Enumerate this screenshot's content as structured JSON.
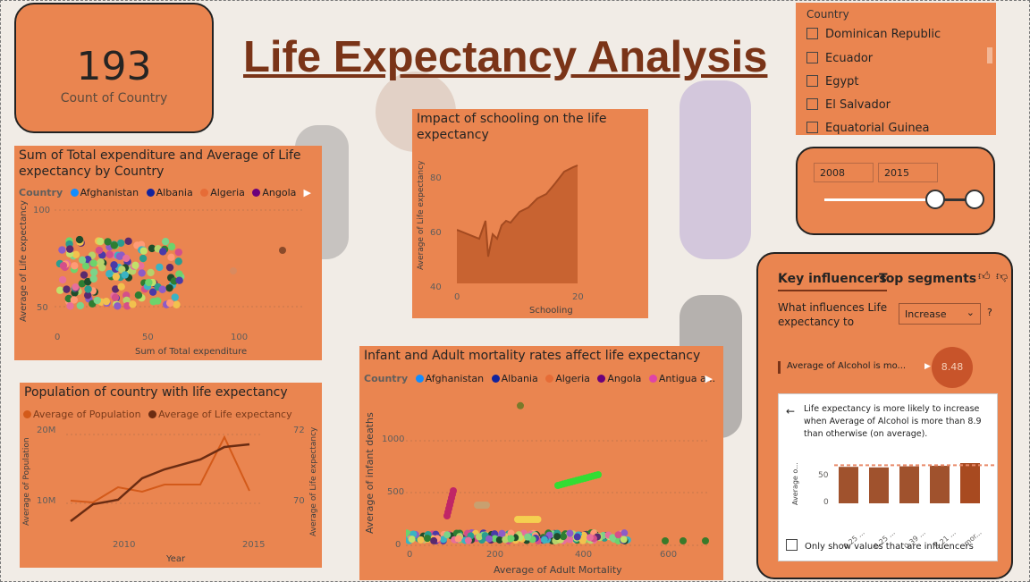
{
  "header": {
    "title": "Life Expectancy Analysis"
  },
  "kpi": {
    "value": "193",
    "label": "Count of Country"
  },
  "country_slicer": {
    "header": "Country",
    "items": [
      "Dominican Republic",
      "Ecuador",
      "Egypt",
      "El Salvador",
      "Equatorial Guinea"
    ]
  },
  "year_range": {
    "start": "2008",
    "end": "2015",
    "start_fraction": 0.74,
    "end_fraction": 1.0
  },
  "scatter1": {
    "title": "Sum of Total expenditure and Average of Life expectancy by Country",
    "legend_label": "Country",
    "legend": [
      "Afghanistan",
      "Albania",
      "Algeria",
      "Angola"
    ],
    "legend_colors": [
      "#118DFF",
      "#12239E",
      "#E66C37",
      "#6B007B"
    ],
    "xlabel": "Sum of Total expenditure",
    "ylabel": "Average of Life expectancy",
    "xticks": [
      "0",
      "50",
      "100"
    ],
    "yticks": [
      "100",
      "50"
    ]
  },
  "area": {
    "title": "Impact of schooling on the life expectancy",
    "xlabel": "Schooling",
    "ylabel": "Average of Life expectancy",
    "xticks": [
      "0",
      "20"
    ],
    "yticks": [
      "80",
      "60",
      "40"
    ]
  },
  "line": {
    "title": "Population of country with life expectancy",
    "legend": [
      "Average of Population",
      "Average of Life expectancy"
    ],
    "legend_colors": [
      "#d35a1a",
      "#6b2c12"
    ],
    "xlabel": "Year",
    "ylabel": "Average of Population",
    "y2label": "Average of Life expectancy",
    "xticks": [
      "2010",
      "2015"
    ],
    "yticks": [
      "20M",
      "10M"
    ],
    "y2ticks": [
      "72",
      "70"
    ]
  },
  "scatter2": {
    "title": "Infant and Adult mortality rates affect life expectancy",
    "legend_label": "Country",
    "legend": [
      "Afghanistan",
      "Albania",
      "Algeria",
      "Angola",
      "Antigua a..."
    ],
    "legend_colors": [
      "#118DFF",
      "#12239E",
      "#E66C37",
      "#6B007B",
      "#E044A7"
    ],
    "xlabel": "Average of Adult Mortality",
    "ylabel": "Average of infant deaths",
    "xticks": [
      "0",
      "200",
      "400",
      "600"
    ],
    "yticks": [
      "1000",
      "500",
      "0"
    ]
  },
  "key_influencers": {
    "tab1": "Key influencers",
    "tab2": "Top segments",
    "question": "What influences Life expectancy to",
    "dropdown": "Increase",
    "help": "?",
    "influencer": "Average of Alcohol is mo...",
    "bubble": "8.48",
    "detail": "Life expectancy is more likely to increase when Average of Alcohol is more than 8.9 than otherwise (on average).",
    "ylabel": "Average o...",
    "yticks": [
      "50",
      "0"
    ],
    "xcats": [
      "0.25 ...",
      "0.25 ...",
      "0.39 ...",
      "5.21 ...",
      "mor..."
    ],
    "checkbox_label": "Only show values that are influencers"
  }
}
